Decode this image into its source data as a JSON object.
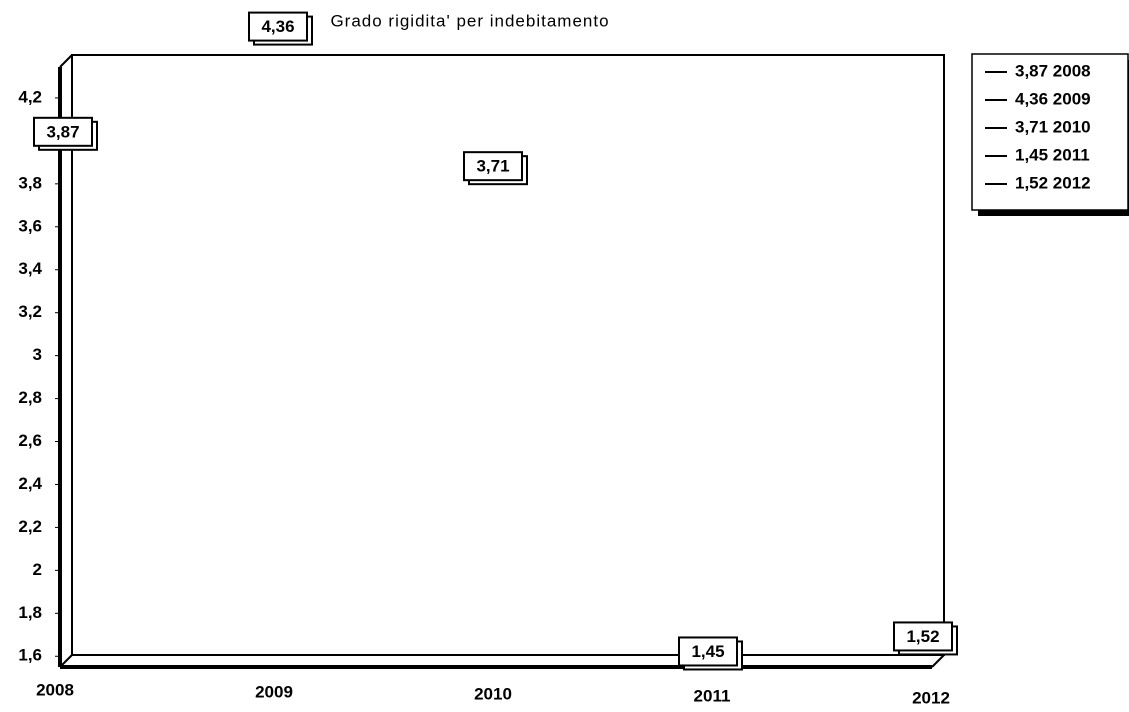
{
  "chart_data": {
    "type": "line",
    "title": "Grado rigidita' per indebitamento",
    "categories": [
      "2008",
      "2009",
      "2010",
      "2011",
      "2012"
    ],
    "values": [
      3.87,
      4.36,
      3.71,
      1.45,
      1.52
    ],
    "value_labels": [
      "3,87",
      "4,36",
      "3,71",
      "1,45",
      "1,52"
    ],
    "legend": [
      "3,87 2008",
      "4,36 2009",
      "3,71 2010",
      "1,45 2011",
      "1,52 2012"
    ],
    "color": "#000000",
    "ylim": [
      1.55,
      4.4
    ],
    "yticks": [
      {
        "value": 1.6,
        "label": "1,6"
      },
      {
        "value": 1.8,
        "label": "1,8"
      },
      2,
      {
        "value": 2.2,
        "label": "2,2"
      },
      {
        "value": 2.4,
        "label": "2,4"
      },
      {
        "value": 2.6,
        "label": "2,6"
      },
      {
        "value": 2.8,
        "label": "2,8"
      },
      3,
      {
        "value": 3.2,
        "label": "3,2"
      },
      {
        "value": 3.4,
        "label": "3,4"
      },
      {
        "value": 3.6,
        "label": "3,6"
      },
      {
        "value": 3.8,
        "label": "3,8"
      },
      {
        "value": 4.2,
        "label": "4,2"
      }
    ]
  }
}
